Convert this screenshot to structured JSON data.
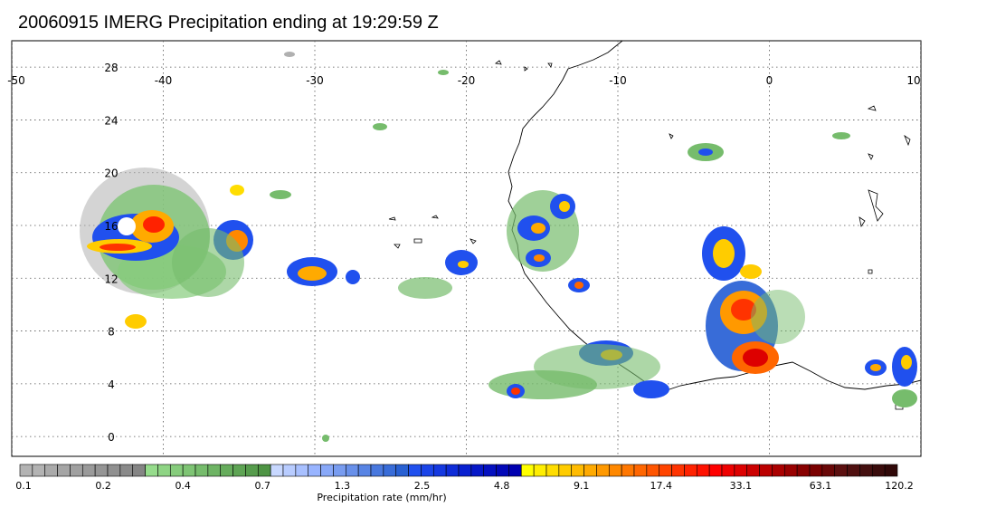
{
  "title": "20060915 IMERG Precipitation ending at 19:29:59 Z",
  "map": {
    "lon_range": [
      -50,
      10
    ],
    "lat_range": [
      -1.5,
      30
    ],
    "lon_ticks": [
      "-50",
      "-40",
      "-30",
      "-20",
      "-10",
      "0",
      "10"
    ],
    "lat_ticks": [
      "28",
      "24",
      "20",
      "16",
      "12",
      "8",
      "4",
      "0"
    ],
    "grid": "dotted",
    "coastline": "African west coast"
  },
  "colorbar": {
    "label": "Precipitation rate (mm/hr)",
    "tick_labels": [
      "0.1",
      "0.2",
      "0.4",
      "0.7",
      "1.3",
      "2.5",
      "4.8",
      "9.1",
      "17.4",
      "33.1",
      "63.1",
      "120.2"
    ],
    "colors": [
      "#b3b3b3",
      "#b3b3b3",
      "#aaaaaa",
      "#a5a5a5",
      "#a0a0a0",
      "#9a9a9a",
      "#959595",
      "#909090",
      "#8a8a8a",
      "#858585",
      "#96dc8c",
      "#8ed484",
      "#86cc7c",
      "#7ec474",
      "#76bc6c",
      "#6eb464",
      "#66ac5c",
      "#5ea454",
      "#569c4c",
      "#4e9444",
      "#c8d8ff",
      "#b8ccff",
      "#a8c0ff",
      "#98b4ff",
      "#88a8f8",
      "#789cf0",
      "#6890ea",
      "#5884e4",
      "#4878de",
      "#386cd8",
      "#2860d2",
      "#2050ee",
      "#1a44e8",
      "#1438e0",
      "#0e2cd8",
      "#0820d0",
      "#0618c8",
      "#0410c0",
      "#0208b8",
      "#0000b0",
      "#ffff00",
      "#ffee00",
      "#ffdd00",
      "#ffcc00",
      "#ffbb00",
      "#ffaa00",
      "#ff9900",
      "#ff8800",
      "#ff7700",
      "#ff6600",
      "#ff5500",
      "#ff4400",
      "#ff3300",
      "#ff2200",
      "#ff1100",
      "#ff0000",
      "#ee0000",
      "#dd0000",
      "#cc0000",
      "#bb0000",
      "#aa0000",
      "#990000",
      "#880000",
      "#7a0000",
      "#6a0808",
      "#5c1010",
      "#501010",
      "#441010",
      "#3a0c0c",
      "#300808"
    ]
  }
}
